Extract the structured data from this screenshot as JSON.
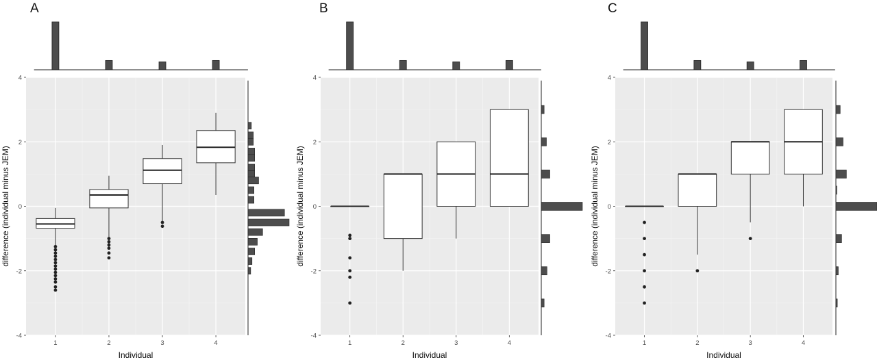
{
  "chart_data": [
    {
      "type": "box",
      "panel_label": "A",
      "xlabel": "Individual",
      "ylabel": "difference (individual minus JEM)",
      "categories": [
        "1",
        "2",
        "3",
        "4"
      ],
      "yticks": [
        "-4",
        "-2",
        "0",
        "2",
        "4"
      ],
      "ylim": [
        -4,
        4
      ],
      "grid": true,
      "boxes": [
        {
          "category": "1",
          "lower_whisker": -1.2,
          "q1": -0.68,
          "median": -0.55,
          "q3": -0.38,
          "upper_whisker": -0.05,
          "outliers": [
            -1.25,
            -1.35,
            -1.45,
            -1.55,
            -1.65,
            -1.75,
            -1.85,
            -1.95,
            -2.05,
            -2.15,
            -2.25,
            -2.35,
            -2.5,
            -2.6
          ]
        },
        {
          "category": "2",
          "lower_whisker": -0.95,
          "q1": -0.05,
          "median": 0.35,
          "q3": 0.52,
          "upper_whisker": 0.95,
          "outliers": [
            -1.0,
            -1.1,
            -1.2,
            -1.3,
            -1.45,
            -1.6
          ]
        },
        {
          "category": "3",
          "lower_whisker": -0.45,
          "q1": 0.7,
          "median": 1.12,
          "q3": 1.48,
          "upper_whisker": 1.9,
          "outliers": [
            -0.5,
            -0.62
          ]
        },
        {
          "category": "4",
          "lower_whisker": 0.35,
          "q1": 1.35,
          "median": 1.83,
          "q3": 2.35,
          "upper_whisker": 2.9,
          "outliers": []
        }
      ],
      "top_histogram": [
        0.72,
        0.14,
        0.12,
        0.14
      ],
      "side_histogram": [
        {
          "y": 2.5,
          "count": 0.05
        },
        {
          "y": 2.2,
          "count": 0.08
        },
        {
          "y": 2.0,
          "count": 0.08
        },
        {
          "y": 1.7,
          "count": 0.1
        },
        {
          "y": 1.5,
          "count": 0.1
        },
        {
          "y": 1.2,
          "count": 0.1
        },
        {
          "y": 1.0,
          "count": 0.1
        },
        {
          "y": 0.8,
          "count": 0.16
        },
        {
          "y": 0.5,
          "count": 0.09
        },
        {
          "y": 0.2,
          "count": 0.09
        },
        {
          "y": -0.2,
          "count": 0.55
        },
        {
          "y": -0.5,
          "count": 0.62
        },
        {
          "y": -0.8,
          "count": 0.22
        },
        {
          "y": -1.1,
          "count": 0.14
        },
        {
          "y": -1.4,
          "count": 0.1
        },
        {
          "y": -1.7,
          "count": 0.06
        },
        {
          "y": -2.0,
          "count": 0.04
        }
      ]
    },
    {
      "type": "box",
      "panel_label": "B",
      "xlabel": "Individual",
      "ylabel": "difference (individual minus JEM)",
      "categories": [
        "1",
        "2",
        "3",
        "4"
      ],
      "yticks": [
        "-4",
        "-2",
        "0",
        "2",
        "4"
      ],
      "ylim": [
        -4,
        4
      ],
      "grid": true,
      "boxes": [
        {
          "category": "1",
          "lower_whisker": 0,
          "q1": 0,
          "median": 0,
          "q3": 0,
          "upper_whisker": 0,
          "outliers": [
            -0.9,
            -1.0,
            -1.6,
            -2.0,
            -2.2,
            -3.0
          ]
        },
        {
          "category": "2",
          "lower_whisker": -2,
          "q1": -1,
          "median": 1,
          "q3": 1,
          "upper_whisker": 1,
          "outliers": []
        },
        {
          "category": "3",
          "lower_whisker": -1,
          "q1": 0,
          "median": 1,
          "q3": 2,
          "upper_whisker": 2,
          "outliers": []
        },
        {
          "category": "4",
          "lower_whisker": 0,
          "q1": 0,
          "median": 1,
          "q3": 3,
          "upper_whisker": 3,
          "outliers": []
        }
      ],
      "top_histogram": [
        0.72,
        0.14,
        0.12,
        0.14
      ],
      "side_histogram": [
        {
          "y": 3,
          "count": 0.05
        },
        {
          "y": 2,
          "count": 0.09
        },
        {
          "y": 1,
          "count": 0.15
        },
        {
          "y": 0,
          "count": 0.72
        },
        {
          "y": -1,
          "count": 0.15
        },
        {
          "y": -2,
          "count": 0.1
        },
        {
          "y": -3,
          "count": 0.05
        }
      ]
    },
    {
      "type": "box",
      "panel_label": "C",
      "xlabel": "Individual",
      "ylabel": "difference (individual minus JEM)",
      "categories": [
        "1",
        "2",
        "3",
        "4"
      ],
      "yticks": [
        "-4",
        "-2",
        "0",
        "2",
        "4"
      ],
      "ylim": [
        -4,
        4
      ],
      "grid": true,
      "boxes": [
        {
          "category": "1",
          "lower_whisker": 0,
          "q1": 0,
          "median": 0,
          "q3": 0,
          "upper_whisker": 0,
          "outliers": [
            -0.5,
            -1.0,
            -1.5,
            -2.0,
            -2.5,
            -3.0
          ]
        },
        {
          "category": "2",
          "lower_whisker": -1.5,
          "q1": 0,
          "median": 1,
          "q3": 1,
          "upper_whisker": 1,
          "outliers": [
            -2.0
          ]
        },
        {
          "category": "3",
          "lower_whisker": -0.5,
          "q1": 1,
          "median": 2,
          "q3": 2,
          "upper_whisker": 2,
          "outliers": [
            -1.0
          ]
        },
        {
          "category": "4",
          "lower_whisker": 0,
          "q1": 1,
          "median": 2,
          "q3": 3,
          "upper_whisker": 3,
          "outliers": []
        }
      ],
      "top_histogram": [
        0.72,
        0.14,
        0.12,
        0.14
      ],
      "side_histogram": [
        {
          "y": 3,
          "count": 0.09
        },
        {
          "y": 2,
          "count": 0.15
        },
        {
          "y": 1,
          "count": 0.22
        },
        {
          "y": 0.5,
          "count": 0.02
        },
        {
          "y": 0,
          "count": 0.86
        },
        {
          "y": -1,
          "count": 0.12
        },
        {
          "y": -2,
          "count": 0.05
        },
        {
          "y": -3,
          "count": 0.03
        }
      ]
    }
  ]
}
